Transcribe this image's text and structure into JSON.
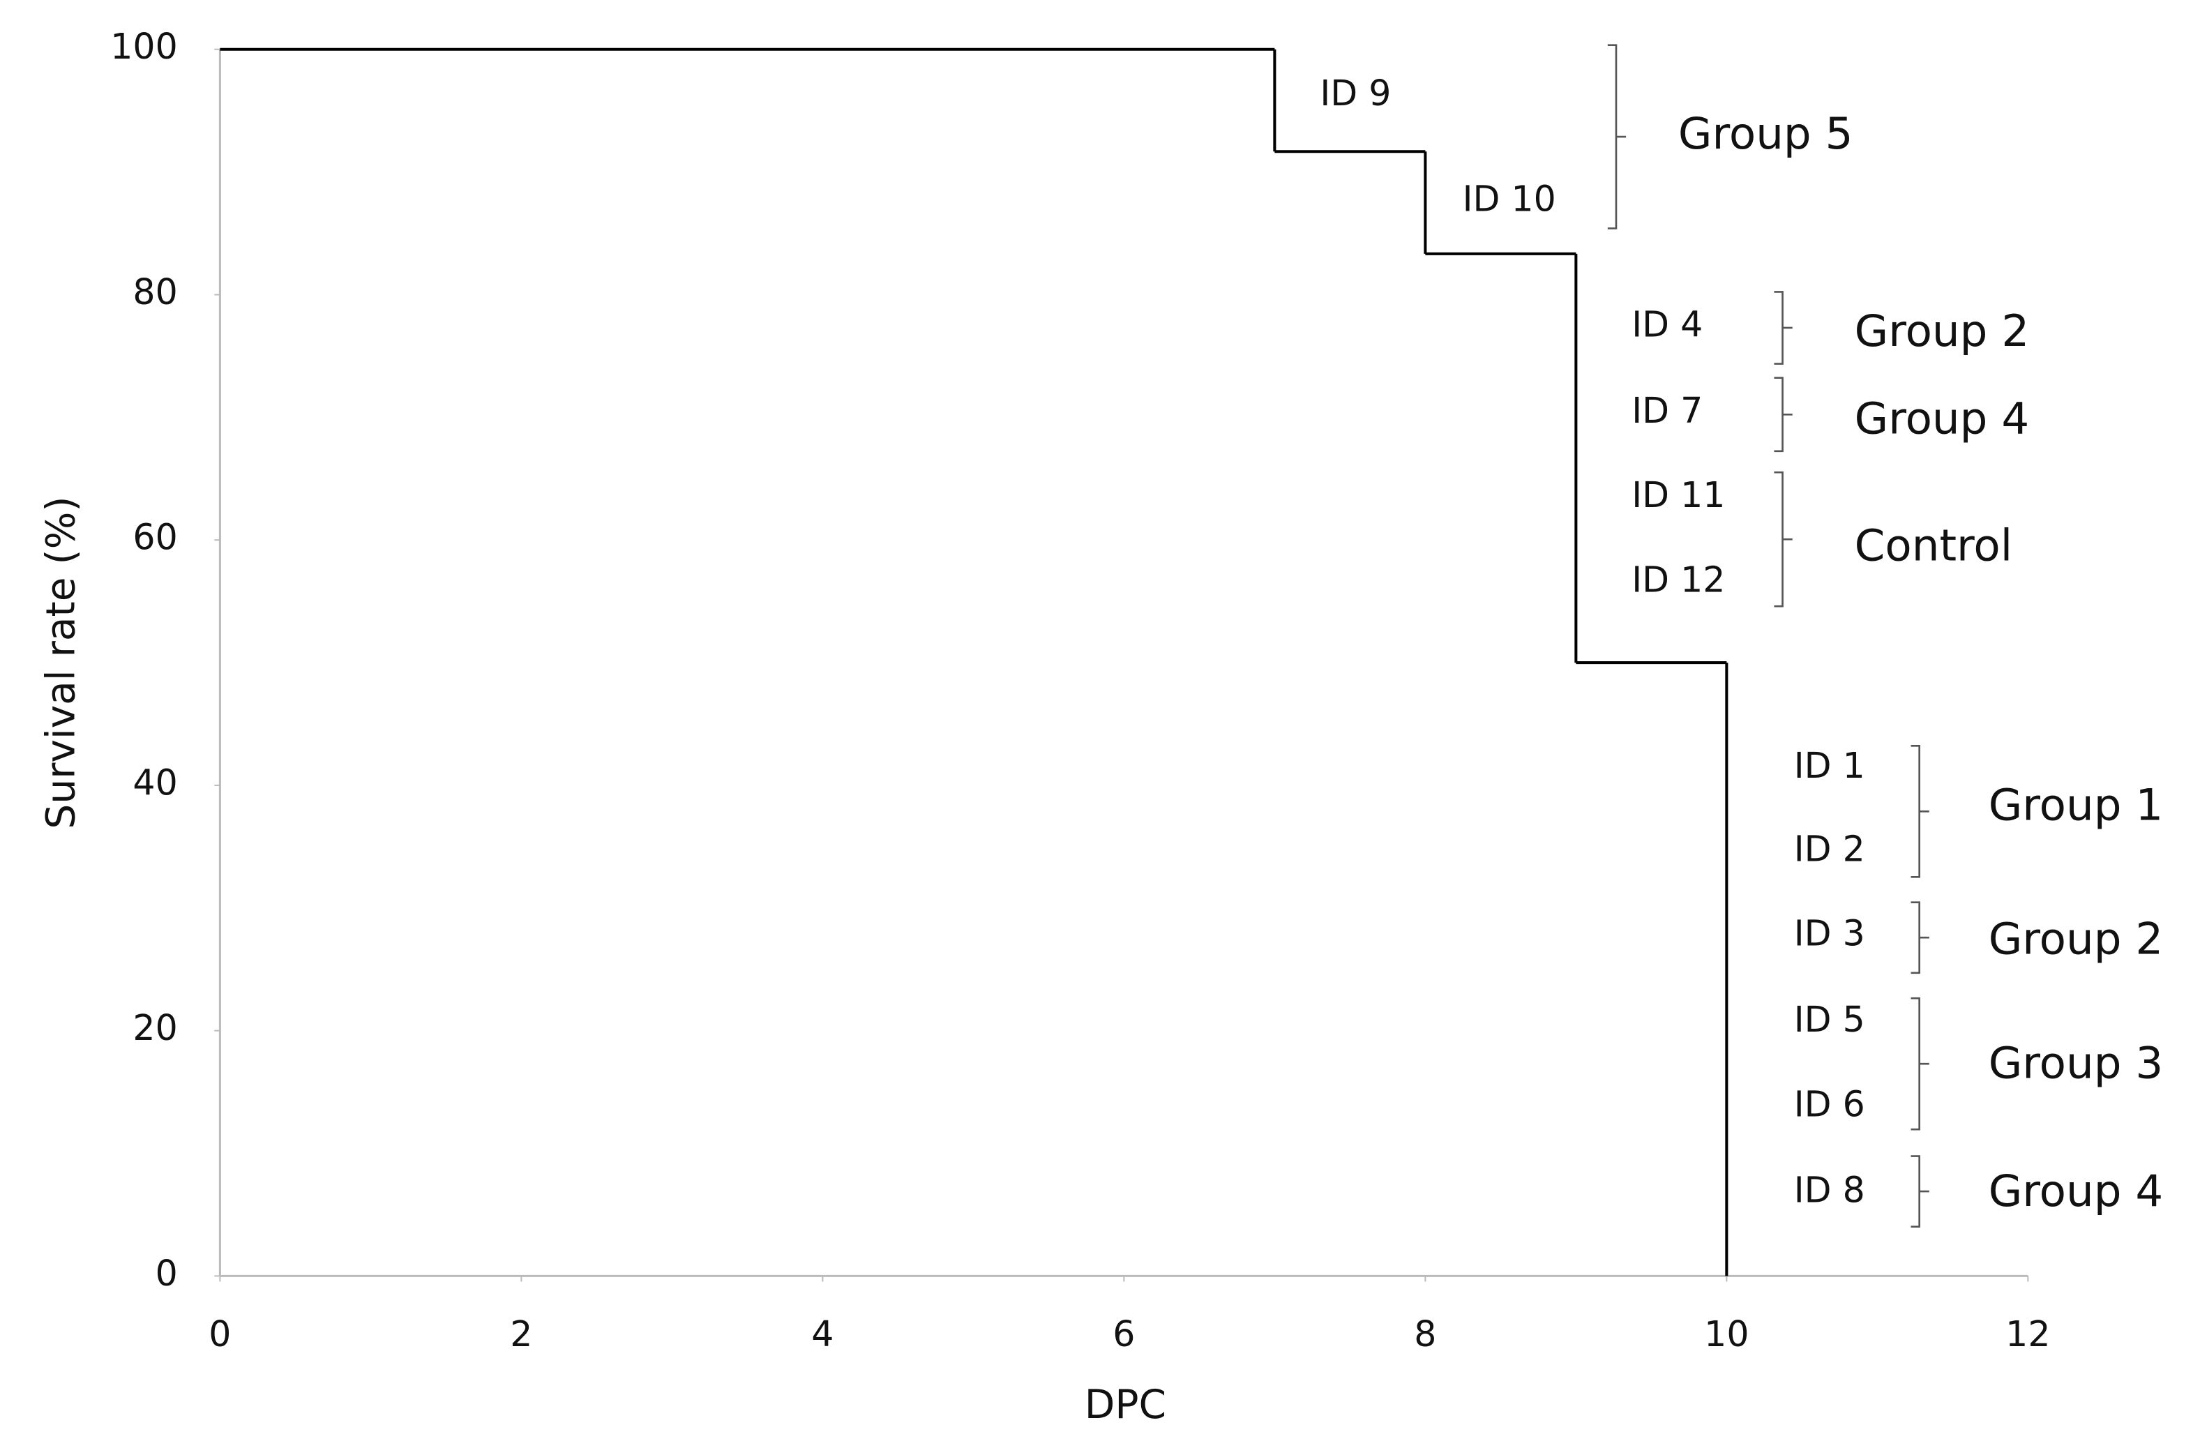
{
  "chart_data": {
    "type": "step",
    "x_label": "DPC",
    "y_label": "Survival rate (%)",
    "x": [
      0,
      7,
      8,
      9,
      10
    ],
    "values": [
      100,
      91.67,
      83.33,
      50,
      0
    ],
    "color": "#000000",
    "xlim": [
      0,
      12
    ],
    "xticks": [
      0,
      2,
      4,
      6,
      8,
      10,
      12
    ],
    "ylim": [
      0,
      100
    ],
    "yticks": [
      0,
      20,
      40,
      60,
      80,
      100
    ],
    "grid": false,
    "annotations": [
      {
        "ids": [
          "ID 9",
          "ID 10"
        ],
        "group": "Group 5"
      },
      {
        "ids": [
          "ID 4"
        ],
        "group": "Group 2"
      },
      {
        "ids": [
          "ID 7"
        ],
        "group": "Group 4"
      },
      {
        "ids": [
          "ID 11",
          "ID 12"
        ],
        "group": "Control"
      },
      {
        "ids": [
          "ID 1",
          "ID 2"
        ],
        "group": "Group 1"
      },
      {
        "ids": [
          "ID 3"
        ],
        "group": "Group 2"
      },
      {
        "ids": [
          "ID 5",
          "ID 6"
        ],
        "group": "Group 3"
      },
      {
        "ids": [
          "ID 8"
        ],
        "group": "Group 4"
      }
    ]
  }
}
